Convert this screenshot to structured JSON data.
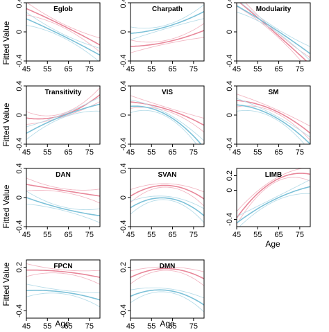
{
  "y_label": "Fitted Value",
  "x_label": "Age",
  "colors": {
    "series_a": "#e8879a",
    "series_b": "#7cc1d8",
    "band_a": "#f2b8c4",
    "band_b": "#b8dde9"
  },
  "chart_data": [
    {
      "type": "line",
      "title": "Eglob",
      "xlim": [
        45,
        80
      ],
      "ylim": [
        -0.4,
        0.4
      ],
      "x_ticks": [
        45,
        55,
        65,
        75
      ],
      "y_ticks": [
        -0.4,
        0,
        0.4
      ],
      "series": [
        {
          "x": [
            45,
            60,
            80
          ],
          "y": [
            0.32,
            0.12,
            -0.18
          ]
        },
        {
          "x": [
            45,
            60,
            80
          ],
          "y": [
            0.18,
            -0.02,
            -0.32
          ]
        }
      ]
    },
    {
      "type": "line",
      "title": "Charpath",
      "xlim": [
        45,
        80
      ],
      "ylim": [
        -0.4,
        0.4
      ],
      "x_ticks": [
        45,
        55,
        65,
        75
      ],
      "y_ticks": [
        -0.4,
        0,
        0.4
      ],
      "series": [
        {
          "x": [
            45,
            62,
            80
          ],
          "y": [
            -0.2,
            -0.14,
            0.02
          ]
        },
        {
          "x": [
            45,
            62,
            80
          ],
          "y": [
            -0.02,
            0.07,
            0.28
          ]
        }
      ]
    },
    {
      "type": "line",
      "title": "Modularity",
      "xlim": [
        45,
        80
      ],
      "ylim": [
        -0.4,
        0.4
      ],
      "x_ticks": [
        45,
        55,
        65,
        75
      ],
      "y_ticks": [
        -0.4,
        0,
        0.4
      ],
      "series": [
        {
          "x": [
            45,
            62,
            80
          ],
          "y": [
            0.44,
            0.02,
            -0.45
          ]
        },
        {
          "x": [
            45,
            62,
            80
          ],
          "y": [
            0.36,
            0.06,
            -0.3
          ]
        }
      ]
    },
    {
      "type": "line",
      "title": "Transitivity",
      "xlim": [
        45,
        80
      ],
      "ylim": [
        -0.4,
        0.4
      ],
      "x_ticks": [
        45,
        55,
        65,
        75
      ],
      "y_ticks": [
        -0.4,
        0,
        0.4
      ],
      "series": [
        {
          "x": [
            45,
            60,
            80
          ],
          "y": [
            -0.04,
            -0.02,
            0.28
          ]
        },
        {
          "x": [
            45,
            60,
            80
          ],
          "y": [
            -0.25,
            -0.04,
            0.15
          ]
        }
      ]
    },
    {
      "type": "line",
      "title": "VIS",
      "xlim": [
        45,
        80
      ],
      "ylim": [
        -0.4,
        0.4
      ],
      "x_ticks": [
        45,
        55,
        65,
        75
      ],
      "y_ticks": [
        -0.4,
        0,
        0.4
      ],
      "series": [
        {
          "x": [
            45,
            60,
            80
          ],
          "y": [
            0.18,
            0.1,
            -0.14
          ]
        },
        {
          "x": [
            45,
            58,
            80
          ],
          "y": [
            0.12,
            0.06,
            -0.45
          ]
        }
      ]
    },
    {
      "type": "line",
      "title": "SM",
      "xlim": [
        45,
        80
      ],
      "ylim": [
        -0.4,
        0.4
      ],
      "x_ticks": [
        45,
        55,
        65,
        75
      ],
      "y_ticks": [
        -0.4,
        0,
        0.4
      ],
      "series": [
        {
          "x": [
            45,
            60,
            80
          ],
          "y": [
            0.2,
            0.1,
            -0.25
          ]
        },
        {
          "x": [
            45,
            60,
            80
          ],
          "y": [
            0.14,
            0.02,
            -0.4
          ]
        }
      ]
    },
    {
      "type": "line",
      "title": "DAN",
      "xlim": [
        45,
        80
      ],
      "ylim": [
        -0.4,
        0.4
      ],
      "x_ticks": [
        45,
        55,
        65,
        75
      ],
      "y_ticks": [
        -0.4,
        0,
        0.4
      ],
      "series": [
        {
          "x": [
            45,
            62,
            80
          ],
          "y": [
            0.18,
            0.1,
            0.02
          ]
        },
        {
          "x": [
            45,
            62,
            80
          ],
          "y": [
            0.0,
            -0.15,
            -0.25
          ]
        }
      ]
    },
    {
      "type": "line",
      "title": "SVAN",
      "xlim": [
        45,
        80
      ],
      "ylim": [
        -0.4,
        0.4
      ],
      "x_ticks": [
        45,
        55,
        65,
        75
      ],
      "y_ticks": [
        -0.4,
        0,
        0.4
      ],
      "series": [
        {
          "x": [
            45,
            65,
            80
          ],
          "y": [
            0.02,
            0.16,
            -0.02
          ]
        },
        {
          "x": [
            45,
            65,
            80
          ],
          "y": [
            -0.14,
            -0.02,
            -0.25
          ]
        }
      ]
    },
    {
      "type": "line",
      "title": "LIMB",
      "xlim": [
        45,
        80
      ],
      "ylim": [
        -0.5,
        0.3
      ],
      "x_ticks": [
        45,
        55,
        65,
        75
      ],
      "y_ticks": [
        -0.4,
        0,
        0.2
      ],
      "series": [
        {
          "x": [
            45,
            65,
            80
          ],
          "y": [
            -0.38,
            0.16,
            0.22
          ]
        },
        {
          "x": [
            45,
            65,
            80
          ],
          "y": [
            -0.45,
            -0.1,
            0.05
          ]
        }
      ]
    },
    {
      "type": "line",
      "title": "FPCN",
      "xlim": [
        45,
        80
      ],
      "ylim": [
        -0.5,
        0.3
      ],
      "x_ticks": [
        45,
        55,
        65,
        75
      ],
      "y_ticks": [
        -0.4,
        0.2
      ],
      "series": [
        {
          "x": [
            45,
            62,
            80
          ],
          "y": [
            0.16,
            0.14,
            0.06
          ]
        },
        {
          "x": [
            45,
            62,
            80
          ],
          "y": [
            -0.12,
            -0.14,
            -0.25
          ]
        }
      ]
    },
    {
      "type": "line",
      "title": "DMN",
      "xlim": [
        45,
        80
      ],
      "ylim": [
        -0.5,
        0.3
      ],
      "x_ticks": [
        45,
        55,
        65,
        75
      ],
      "y_ticks": [
        -0.4,
        0.2
      ],
      "series": [
        {
          "x": [
            45,
            63,
            80
          ],
          "y": [
            0.06,
            0.18,
            0.04
          ]
        },
        {
          "x": [
            45,
            63,
            80
          ],
          "y": [
            -0.2,
            -0.12,
            -0.32
          ]
        }
      ]
    }
  ]
}
